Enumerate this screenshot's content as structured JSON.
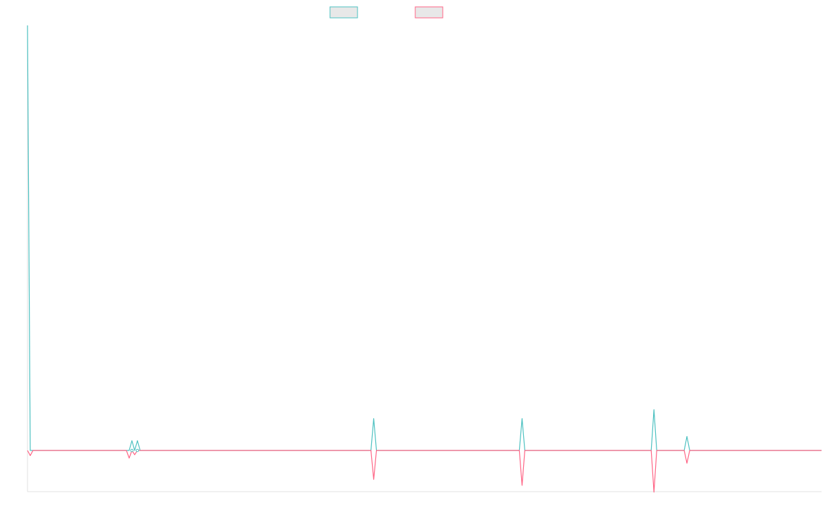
{
  "chart_data": {
    "type": "line",
    "title": "",
    "xlabel": "",
    "ylabel": "",
    "x": [
      0,
      1,
      2,
      3,
      4,
      5,
      6,
      7,
      8,
      9,
      10,
      11,
      12,
      13,
      14,
      15,
      16,
      17,
      18,
      19,
      20,
      21,
      22,
      23,
      24,
      25,
      26,
      27,
      28,
      29,
      30,
      31,
      32,
      33,
      34,
      35,
      36,
      37,
      38,
      39,
      40,
      41,
      42,
      43,
      44,
      45,
      46,
      47,
      48,
      49,
      50,
      51,
      52,
      53,
      54,
      55,
      56,
      57,
      58,
      59,
      60,
      61,
      62,
      63,
      64,
      65,
      66,
      67,
      68,
      69,
      70,
      71,
      72,
      73,
      74,
      75,
      76,
      77,
      78,
      79,
      80,
      81,
      82,
      83,
      84,
      85,
      86,
      87,
      88,
      89,
      90,
      91,
      92,
      93,
      94,
      95,
      96,
      97,
      98,
      99,
      100,
      101,
      102,
      103,
      104,
      105,
      106,
      107,
      108,
      109,
      110,
      111,
      112,
      113,
      114,
      115,
      116,
      117,
      118,
      119,
      120,
      121,
      122,
      123,
      124,
      125,
      126,
      127,
      128,
      129,
      130,
      131,
      132,
      133,
      134,
      135,
      136,
      137,
      138,
      139,
      140,
      141,
      142,
      143,
      144,
      145,
      146,
      147,
      148,
      149,
      150,
      151,
      152,
      153,
      154,
      155,
      156,
      157,
      158,
      159,
      160,
      161,
      162,
      163,
      164,
      165,
      166,
      167,
      168,
      169,
      170,
      171,
      172,
      173,
      174,
      175,
      176,
      177,
      178,
      179,
      180,
      181,
      182,
      183,
      184,
      185,
      186,
      187,
      188,
      189,
      190,
      191,
      192,
      193,
      194,
      195,
      196,
      197,
      198,
      199,
      200,
      201,
      202,
      203,
      204,
      205,
      206,
      207,
      208,
      209,
      210,
      211,
      212,
      213,
      214,
      215,
      216,
      217,
      218,
      219,
      220,
      221,
      222,
      223,
      224,
      225,
      226,
      227,
      228,
      229,
      230,
      231,
      232,
      233,
      234,
      235,
      236,
      237,
      238,
      239,
      240,
      241,
      242,
      243,
      244,
      245,
      246,
      247,
      248,
      249,
      250,
      251,
      252,
      253,
      254,
      255,
      256,
      257,
      258,
      259,
      260,
      261,
      262,
      263,
      264,
      265,
      266,
      267,
      268,
      269,
      270,
      271,
      272,
      273,
      274,
      275,
      276,
      277,
      278,
      279,
      280,
      281,
      282,
      283,
      284,
      285,
      286,
      287,
      288,
      289
    ],
    "series": [
      {
        "color": "#4bc0c0",
        "values": [
          100,
          0,
          0,
          0,
          0,
          0,
          0,
          0,
          0,
          0,
          0,
          0,
          0,
          0,
          0,
          0,
          0,
          0,
          0,
          0,
          0,
          0,
          0,
          0,
          0,
          0,
          0,
          0,
          0,
          0,
          0,
          0,
          0,
          0,
          0,
          0,
          0,
          0,
          2.3,
          0,
          2.3,
          0,
          0,
          0,
          0,
          0,
          0,
          0,
          0,
          0,
          0,
          0,
          0,
          0,
          0,
          0,
          0,
          0,
          0,
          0,
          0,
          0,
          0,
          0,
          0,
          0,
          0,
          0,
          0,
          0,
          0,
          0,
          0,
          0,
          0,
          0,
          0,
          0,
          0,
          0,
          0,
          0,
          0,
          0,
          0,
          0,
          0,
          0,
          0,
          0,
          0,
          0,
          0,
          0,
          0,
          0,
          0,
          0,
          0,
          0,
          0,
          0,
          0,
          0,
          0,
          0,
          0,
          0,
          0,
          0,
          0,
          0,
          0,
          0,
          0,
          0,
          0,
          0,
          0,
          0,
          0,
          0,
          0,
          0,
          0,
          0,
          7.5,
          0,
          0,
          0,
          0,
          0,
          0,
          0,
          0,
          0,
          0,
          0,
          0,
          0,
          0,
          0,
          0,
          0,
          0,
          0,
          0,
          0,
          0,
          0,
          0,
          0,
          0,
          0,
          0,
          0,
          0,
          0,
          0,
          0,
          0,
          0,
          0,
          0,
          0,
          0,
          0,
          0,
          0,
          0,
          0,
          0,
          0,
          0,
          0,
          0,
          0,
          0,
          0,
          0,
          7.5,
          0,
          0,
          0,
          0,
          0,
          0,
          0,
          0,
          0,
          0,
          0,
          0,
          0,
          0,
          0,
          0,
          0,
          0,
          0,
          0,
          0,
          0,
          0,
          0,
          0,
          0,
          0,
          0,
          0,
          0,
          0,
          0,
          0,
          0,
          0,
          0,
          0,
          0,
          0,
          0,
          0,
          0,
          0,
          0,
          0,
          0,
          0,
          9.6,
          0,
          0,
          0,
          0,
          0,
          0,
          0,
          0,
          0,
          0,
          0,
          3.3,
          0,
          0,
          0,
          0,
          0,
          0,
          0,
          0,
          0,
          0,
          0,
          0,
          0,
          0,
          0,
          0,
          0,
          0,
          0,
          0,
          0,
          0,
          0,
          0,
          0,
          0,
          0,
          0,
          0,
          0,
          0,
          0,
          0,
          0,
          0,
          0,
          0,
          0,
          0,
          0,
          0,
          0,
          0,
          0,
          0,
          0,
          0,
          0,
          0
        ]
      },
      {
        "color": "#ff6384",
        "values": [
          0,
          -1.2,
          0,
          0,
          0,
          0,
          0,
          0,
          0,
          0,
          0,
          0,
          0,
          0,
          0,
          0,
          0,
          0,
          0,
          0,
          0,
          0,
          0,
          0,
          0,
          0,
          0,
          0,
          0,
          0,
          0,
          0,
          0,
          0,
          0,
          0,
          0,
          -1.8,
          0,
          -1.0,
          0,
          0,
          0,
          0,
          0,
          0,
          0,
          0,
          0,
          0,
          0,
          0,
          0,
          0,
          0,
          0,
          0,
          0,
          0,
          0,
          0,
          0,
          0,
          0,
          0,
          0,
          0,
          0,
          0,
          0,
          0,
          0,
          0,
          0,
          0,
          0,
          0,
          0,
          0,
          0,
          0,
          0,
          0,
          0,
          0,
          0,
          0,
          0,
          0,
          0,
          0,
          0,
          0,
          0,
          0,
          0,
          0,
          0,
          0,
          0,
          0,
          0,
          0,
          0,
          0,
          0,
          0,
          0,
          0,
          0,
          0,
          0,
          0,
          0,
          0,
          0,
          0,
          0,
          0,
          0,
          0,
          0,
          0,
          0,
          0,
          0,
          -6.8,
          0,
          0,
          0,
          0,
          0,
          0,
          0,
          0,
          0,
          0,
          0,
          0,
          0,
          0,
          0,
          0,
          0,
          0,
          0,
          0,
          0,
          0,
          0,
          0,
          0,
          0,
          0,
          0,
          0,
          0,
          0,
          0,
          0,
          0,
          0,
          0,
          0,
          0,
          0,
          0,
          0,
          0,
          0,
          0,
          0,
          0,
          0,
          0,
          0,
          0,
          0,
          0,
          0,
          -8.2,
          0,
          0,
          0,
          0,
          0,
          0,
          0,
          0,
          0,
          0,
          0,
          0,
          0,
          0,
          0,
          0,
          0,
          0,
          0,
          0,
          0,
          0,
          0,
          0,
          0,
          0,
          0,
          0,
          0,
          0,
          0,
          0,
          0,
          0,
          0,
          0,
          0,
          0,
          0,
          0,
          0,
          0,
          0,
          0,
          0,
          0,
          0,
          -9.8,
          0,
          0,
          0,
          0,
          0,
          0,
          0,
          0,
          0,
          0,
          0,
          -3.0,
          0,
          0,
          0,
          0,
          0,
          0,
          0,
          0,
          0,
          0,
          0,
          0,
          0,
          0,
          0,
          0,
          0,
          0,
          0,
          0,
          0,
          0,
          0,
          0,
          0,
          0,
          0,
          0,
          0,
          0,
          0,
          0,
          0,
          0,
          0,
          0,
          0,
          0,
          0,
          0,
          0,
          0,
          0,
          0,
          0,
          0,
          0,
          0,
          0
        ]
      }
    ],
    "legend": "top",
    "grid": false
  }
}
